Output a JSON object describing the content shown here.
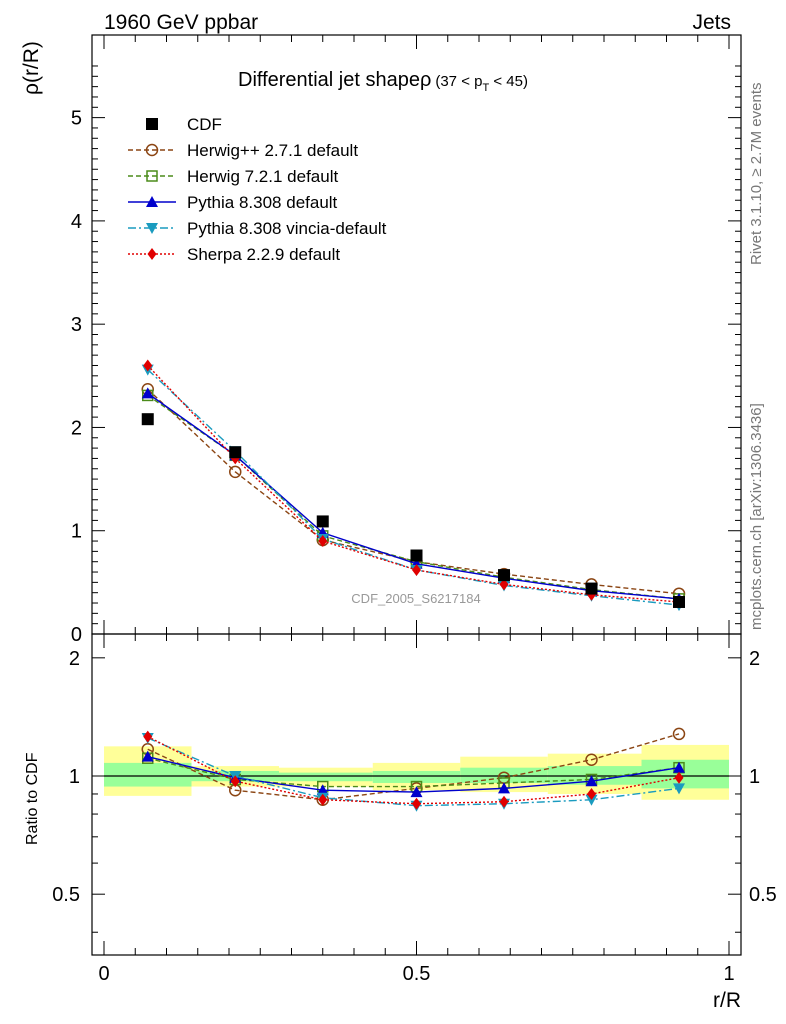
{
  "header": {
    "left": "1960 GeV ppbar",
    "right": "Jets"
  },
  "side_labels": {
    "rivet": "Rivet 3.1.10, ≥ 2.7M events",
    "mcplots": "mcplots.cern.ch [arXiv:1306.3436]"
  },
  "chart_data": {
    "type": "line",
    "title": "Differential jet shapeρ",
    "title_cut": "(37 < p",
    "title_cut_sub": "T",
    "title_cut_end": " < 45)",
    "watermark": "CDF_2005_S6217184",
    "xlabel": "r/R",
    "ylabel": "ρ(r/R)",
    "ratio_ylabel": "Ratio to CDF",
    "xlim": [
      0,
      1
    ],
    "ylim": [
      0,
      5.8
    ],
    "ratio_ylim": [
      0.35,
      2.3
    ],
    "ratio_log": true,
    "x_ticks": [
      "0",
      "0.5",
      "1"
    ],
    "y_ticks": [
      "0",
      "1",
      "2",
      "3",
      "4",
      "5"
    ],
    "ratio_ticks": [
      "0.5",
      "1",
      "2"
    ],
    "x": [
      0.07,
      0.21,
      0.35,
      0.5,
      0.64,
      0.78,
      0.92
    ],
    "legend_placement": "top-left",
    "data": {
      "name": "CDF",
      "color": "#000000",
      "values": [
        2.08,
        1.76,
        1.09,
        0.76,
        0.57,
        0.44,
        0.31
      ],
      "ratio_bands": [
        {
          "x": [
            0.0,
            0.14
          ],
          "yellow": [
            0.89,
            1.19
          ],
          "green": [
            0.94,
            1.08
          ]
        },
        {
          "x": [
            0.14,
            0.28
          ],
          "yellow": [
            0.94,
            1.06
          ],
          "green": [
            0.97,
            1.03
          ]
        },
        {
          "x": [
            0.28,
            0.43
          ],
          "yellow": [
            0.94,
            1.05
          ],
          "green": [
            0.97,
            1.02
          ]
        },
        {
          "x": [
            0.43,
            0.57
          ],
          "yellow": [
            0.92,
            1.08
          ],
          "green": [
            0.96,
            1.03
          ]
        },
        {
          "x": [
            0.57,
            0.71
          ],
          "yellow": [
            0.91,
            1.12
          ],
          "green": [
            0.96,
            1.05
          ]
        },
        {
          "x": [
            0.71,
            0.86
          ],
          "yellow": [
            0.9,
            1.14
          ],
          "green": [
            0.95,
            1.06
          ]
        },
        {
          "x": [
            0.86,
            1.0
          ],
          "yellow": [
            0.87,
            1.2
          ],
          "green": [
            0.93,
            1.1
          ]
        }
      ]
    },
    "series": [
      {
        "name": "Herwig++ 2.7.1 default",
        "color": "#8b4513",
        "dash": "5,3",
        "marker": "circle-open",
        "values": [
          2.37,
          1.57,
          0.91,
          0.7,
          0.58,
          0.48,
          0.39
        ],
        "ratio": [
          1.17,
          0.92,
          0.87,
          0.93,
          0.99,
          1.1,
          1.28
        ]
      },
      {
        "name": "Herwig 7.2.1 default",
        "color": "#4b8b1a",
        "dash": "5,3",
        "marker": "square-open",
        "values": [
          2.31,
          1.73,
          0.95,
          0.7,
          0.55,
          0.43,
          0.34
        ],
        "ratio": [
          1.11,
          0.98,
          0.94,
          0.94,
          0.96,
          0.98,
          1.05
        ]
      },
      {
        "name": "Pythia 8.308 default",
        "color": "#0000cc",
        "dash": "",
        "marker": "triangle-up",
        "values": [
          2.33,
          1.73,
          0.98,
          0.68,
          0.54,
          0.42,
          0.34
        ],
        "ratio": [
          1.12,
          0.99,
          0.92,
          0.91,
          0.93,
          0.97,
          1.05
        ]
      },
      {
        "name": "Pythia 8.308 vincia-default",
        "color": "#1a9bbf",
        "dash": "8,3,2,3",
        "marker": "triangle-down",
        "values": [
          2.56,
          1.77,
          0.92,
          0.62,
          0.47,
          0.37,
          0.28
        ],
        "ratio": [
          1.25,
          1.0,
          0.88,
          0.84,
          0.85,
          0.87,
          0.93
        ]
      },
      {
        "name": "Sherpa 2.2.9 default",
        "color": "#e00000",
        "dash": "2,2",
        "marker": "diamond",
        "values": [
          2.6,
          1.7,
          0.9,
          0.62,
          0.48,
          0.38,
          0.31
        ],
        "ratio": [
          1.26,
          0.97,
          0.87,
          0.85,
          0.86,
          0.9,
          0.99
        ]
      }
    ]
  }
}
